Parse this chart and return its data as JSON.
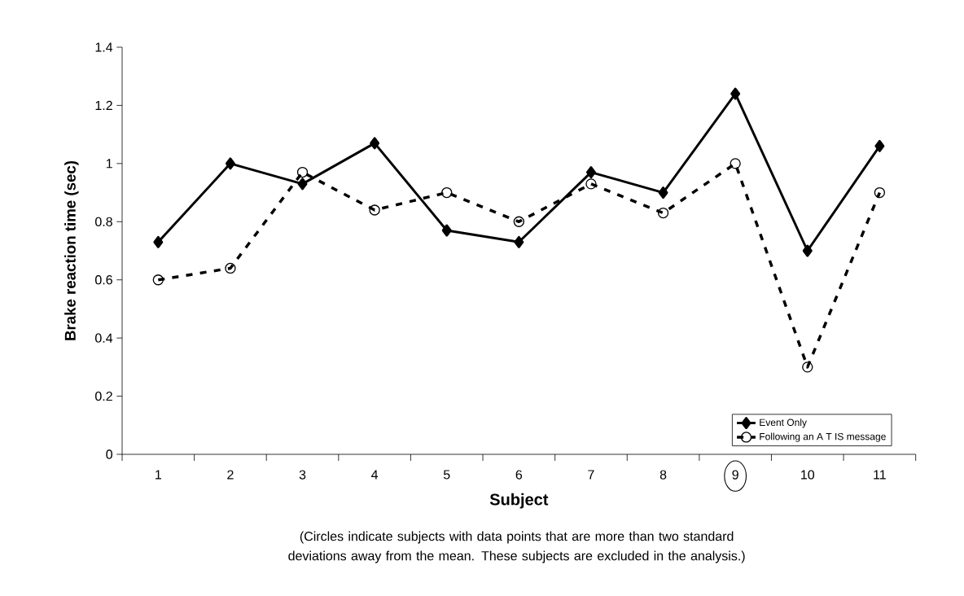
{
  "chart_data": {
    "type": "line",
    "xlabel": "Subject",
    "ylabel": "Brake reaction time (sec)",
    "categories": [
      "1",
      "2",
      "3",
      "4",
      "5",
      "6",
      "7",
      "8",
      "9",
      "10",
      "11"
    ],
    "series": [
      {
        "name": "Event Only",
        "color": "#000000",
        "marker": "diamond",
        "line_style": "solid",
        "values": [
          0.73,
          1.0,
          0.93,
          1.07,
          0.77,
          0.73,
          0.97,
          0.9,
          1.24,
          0.7,
          1.06
        ]
      },
      {
        "name": "Following an A T IS message",
        "color": "#000000",
        "marker": "circle",
        "line_style": "dashed",
        "values": [
          0.6,
          0.64,
          0.97,
          0.84,
          0.9,
          0.8,
          0.93,
          0.83,
          1.0,
          0.3,
          0.9
        ]
      }
    ],
    "ylim": [
      0,
      1.4
    ],
    "yticks": [
      0,
      0.2,
      0.4,
      0.6,
      0.8,
      1,
      1.2,
      1.4
    ],
    "legend": "bottom right",
    "annotations": [
      "(Circles indicate subjects with data points that are more than two standard deviations away from the mean.  These subjects are excluded in the analysis.)"
    ]
  }
}
